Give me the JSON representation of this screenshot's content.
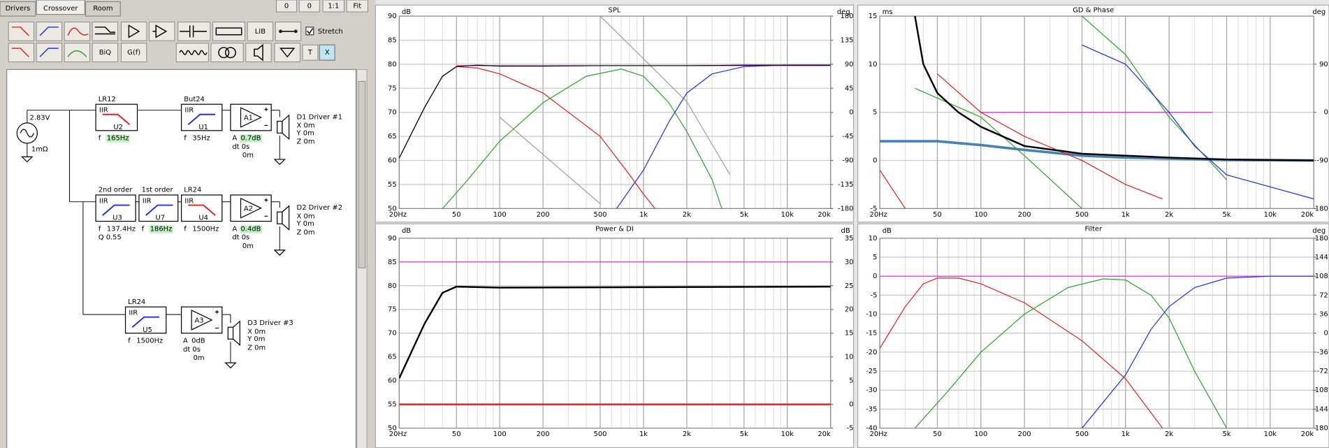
{
  "ui": {
    "tabs": [
      "Drivers",
      "Crossover",
      "Room"
    ],
    "top_buttons": [
      "0",
      "0",
      "1:1",
      "Fit"
    ],
    "toolbar": [
      "LIB",
      "BiQ",
      "G(f)",
      "T",
      "X"
    ],
    "stretch": "Stretch",
    "schematic": {
      "source": {
        "voltage": "2.83V",
        "impedance": "1mΩ"
      },
      "filters": [
        {
          "title": "LR12",
          "type": "IIR",
          "unit": "U2",
          "f_label": "f",
          "f": "165Hz",
          "highlight": true,
          "color": "#e02020",
          "shape": "lowpass"
        },
        {
          "title": "But24",
          "type": "IIR",
          "unit": "U1",
          "f_label": "f",
          "f": "35Hz",
          "highlight": false,
          "color": "#2030e0",
          "shape": "highpass"
        },
        {
          "title": "2nd order",
          "type": "IIR",
          "unit": "U3",
          "f_label": "f",
          "f": "137.4Hz",
          "q": "Q 0.55",
          "highlight": false,
          "color": "#2030e0",
          "shape": "highpass"
        },
        {
          "title": "1st order",
          "type": "IIR",
          "unit": "U7",
          "f_label": "f",
          "f": "186Hz",
          "highlight": true,
          "color": "#2030e0",
          "shape": "highpass"
        },
        {
          "title": "LR24",
          "type": "IIR",
          "unit": "U4",
          "f_label": "f",
          "f": "1500Hz",
          "highlight": false,
          "color": "#e02020",
          "shape": "lowpass"
        },
        {
          "title": "LR24",
          "type": "IIR",
          "unit": "U5",
          "f_label": "f",
          "f": "1500Hz",
          "highlight": false,
          "color": "#2030e0",
          "shape": "highpass"
        }
      ],
      "amps": [
        {
          "unit": "A1",
          "gain_label": "A",
          "gain": "0.7dB",
          "highlight": true,
          "delay": "dt 0s",
          "dist": "0m"
        },
        {
          "unit": "A2",
          "gain_label": "A",
          "gain": "0.4dB",
          "highlight": true,
          "delay": "dt 0s",
          "dist": "0m"
        },
        {
          "unit": "A3",
          "gain_label": "A",
          "gain": "0dB",
          "highlight": false,
          "delay": "dt 0s",
          "dist": "0m"
        }
      ],
      "drivers": [
        {
          "name": "D1 Driver #1",
          "x": "X 0m",
          "y": "Y 0m",
          "z": "Z 0m"
        },
        {
          "name": "D2 Driver #2",
          "x": "X 0m",
          "y": "Y 0m",
          "z": "Z 0m"
        },
        {
          "name": "D3 Driver #3",
          "x": "X 0m",
          "y": "Y 0m",
          "z": "Z 0m"
        }
      ]
    }
  },
  "chart_data": [
    {
      "type": "line",
      "title": "SPL",
      "y_unit": "dB",
      "y2_unit": "deg",
      "xscale": "log",
      "xlim": [
        20,
        20000
      ],
      "xticks": [
        {
          "value": 20,
          "label": "20Hz"
        },
        50,
        100,
        200,
        500,
        {
          "value": 1000,
          "label": "1k"
        },
        {
          "value": 2000,
          "label": "2k"
        },
        {
          "value": 5000,
          "label": "5k"
        },
        {
          "value": 10000,
          "label": "10k"
        },
        {
          "value": 20000,
          "label": "20k"
        }
      ],
      "ylim": [
        50,
        90
      ],
      "yticks": [
        50,
        55,
        60,
        65,
        70,
        75,
        80,
        85,
        90
      ],
      "y2lim": [
        -180,
        180
      ],
      "y2ticks": [
        -180,
        -135,
        -90,
        -45,
        0,
        45,
        90,
        135,
        180
      ],
      "series": [
        {
          "color": "#a0a0a0",
          "axis": "y2",
          "x": [
            100,
            500
          ],
          "values": [
            -9,
            -171
          ]
        },
        {
          "color": "#a0a0a0",
          "axis": "y2",
          "x": [
            500,
            1000,
            2000,
            4000
          ],
          "values": [
            180,
            100,
            20,
            -117
          ]
        },
        {
          "color": "#e02020",
          "x": [
            20,
            30,
            40,
            50,
            70,
            100,
            200,
            500,
            800,
            1000,
            1200
          ],
          "values": [
            60.5,
            71,
            77.5,
            79.5,
            79.2,
            78,
            74,
            65,
            57,
            53,
            50
          ]
        },
        {
          "color": "#30a030",
          "x": [
            40,
            60,
            100,
            200,
            400,
            700,
            1000,
            1500,
            2000,
            3000,
            3500
          ],
          "values": [
            50,
            56,
            64,
            72,
            77.5,
            79,
            77.5,
            72,
            66,
            56,
            50
          ]
        },
        {
          "color": "#2030e0",
          "x": [
            650,
            1000,
            1500,
            2000,
            3000,
            5000,
            10000,
            20000
          ],
          "values": [
            50,
            58,
            68,
            74,
            78,
            79.5,
            79.8,
            79.8
          ]
        },
        {
          "color": "#e020e0",
          "x": [
            50,
            20000
          ],
          "values": [
            79.7,
            79.7
          ]
        },
        {
          "color": "#000000",
          "x": [
            20,
            30,
            40,
            50,
            70,
            100,
            200,
            500,
            1000,
            2000,
            5000,
            20000
          ],
          "values": [
            60.5,
            71,
            77.5,
            79.5,
            79.8,
            79.6,
            79.6,
            79.7,
            79.7,
            79.7,
            79.8,
            79.8
          ]
        }
      ]
    },
    {
      "type": "line",
      "title": "GD & Phase",
      "y_unit": "ms",
      "y2_unit": "deg",
      "xscale": "log",
      "xlim": [
        20,
        20000
      ],
      "xticks": [
        {
          "value": 20,
          "label": "20Hz"
        },
        50,
        100,
        200,
        500,
        {
          "value": 1000,
          "label": "1k"
        },
        {
          "value": 2000,
          "label": "2k"
        },
        {
          "value": 5000,
          "label": "5k"
        },
        {
          "value": 10000,
          "label": "10k"
        },
        {
          "value": 20000,
          "label": "20k"
        }
      ],
      "ylim": [
        -5,
        15
      ],
      "yticks": [
        -5,
        0,
        5,
        10,
        15
      ],
      "y2lim": [
        -180,
        180
      ],
      "y2ticks": [
        -180,
        -90,
        0,
        90
      ],
      "series": [
        {
          "color": "#4682b4",
          "width": 3,
          "x": [
            20,
            50,
            100,
            200,
            500,
            1000,
            5000,
            20000
          ],
          "values": [
            2,
            2,
            1.6,
            1.1,
            0.5,
            0.3,
            0.05,
            0
          ]
        },
        {
          "color": "#e020e0",
          "x": [
            100,
            4000
          ],
          "values": [
            5,
            5
          ]
        },
        {
          "color": "#e02020",
          "x": [
            20,
            30,
            30,
            50,
            100,
            200,
            500,
            1000,
            1800
          ],
          "values": [
            -1,
            -5,
            null,
            9,
            5,
            2.5,
            0,
            -2.5,
            -4
          ]
        },
        {
          "color": "#30a030",
          "x": [
            35,
            100,
            200,
            500,
            500,
            500,
            1000,
            2000,
            5000
          ],
          "values": [
            7.5,
            4.5,
            0.5,
            -5,
            null,
            15,
            11,
            4.5,
            -2
          ]
        },
        {
          "color": "#2030e0",
          "x": [
            500,
            1000,
            2000,
            3000,
            5000,
            20000
          ],
          "values": [
            12,
            10,
            5,
            1.5,
            -1.5,
            -4
          ]
        },
        {
          "color": "#000000",
          "width": 2,
          "x": [
            35,
            40,
            50,
            70,
            100,
            200,
            500,
            1000,
            2000,
            5000,
            20000
          ],
          "values": [
            15,
            10,
            7,
            5,
            3.5,
            1.5,
            0.7,
            0.5,
            0.3,
            0.1,
            0
          ]
        }
      ]
    },
    {
      "type": "line",
      "title": "Power & DI",
      "y_unit": "dB",
      "y2_unit": "dB",
      "xscale": "log",
      "xlim": [
        20,
        20000
      ],
      "xticks": [
        {
          "value": 20,
          "label": "20Hz"
        },
        50,
        100,
        200,
        500,
        {
          "value": 1000,
          "label": "1k"
        },
        {
          "value": 2000,
          "label": "2k"
        },
        {
          "value": 5000,
          "label": "5k"
        },
        {
          "value": 10000,
          "label": "10k"
        },
        {
          "value": 20000,
          "label": "20k"
        }
      ],
      "ylim": [
        50,
        90
      ],
      "yticks": [
        50,
        55,
        60,
        65,
        70,
        75,
        80,
        85,
        90
      ],
      "y2lim": [
        -5,
        35
      ],
      "y2ticks": [
        -5,
        0,
        5,
        10,
        15,
        20,
        25,
        30,
        35
      ],
      "series": [
        {
          "color": "#e020e0",
          "x": [
            20,
            20000
          ],
          "values": [
            85,
            85
          ]
        },
        {
          "color": "#e02020",
          "width": 2,
          "axis": "y2",
          "x": [
            20,
            20000
          ],
          "values": [
            0,
            0
          ]
        },
        {
          "color": "#000000",
          "width": 2,
          "x": [
            20,
            30,
            40,
            50,
            100,
            20000
          ],
          "values": [
            60.5,
            72,
            78.5,
            79.8,
            79.6,
            79.8
          ]
        }
      ]
    },
    {
      "type": "line",
      "title": "Filter",
      "y_unit": "dB",
      "y2_unit": "deg",
      "xscale": "log",
      "xlim": [
        20,
        20000
      ],
      "xticks": [
        {
          "value": 20,
          "label": "20Hz"
        },
        50,
        100,
        200,
        500,
        {
          "value": 1000,
          "label": "1k"
        },
        {
          "value": 2000,
          "label": "2k"
        },
        {
          "value": 5000,
          "label": "5k"
        },
        {
          "value": 10000,
          "label": "10k"
        },
        {
          "value": 20000,
          "label": "20k"
        }
      ],
      "ylim": [
        -40,
        10
      ],
      "yticks": [
        -40,
        -35,
        -30,
        -25,
        -20,
        -15,
        -10,
        -5,
        0,
        5,
        10
      ],
      "y2lim": [
        -180,
        180
      ],
      "y2ticks": [
        -180,
        -144,
        -108,
        -72,
        -36,
        0,
        36,
        72,
        108,
        144,
        180
      ],
      "series": [
        {
          "color": "#e020e0",
          "x": [
            20,
            20000
          ],
          "values": [
            0,
            0
          ]
        },
        {
          "color": "#e02020",
          "x": [
            20,
            30,
            40,
            50,
            70,
            100,
            200,
            500,
            1000,
            1800
          ],
          "values": [
            -19,
            -8,
            -2,
            -0.5,
            -0.5,
            -2,
            -7,
            -17,
            -27,
            -40
          ]
        },
        {
          "color": "#30a030",
          "x": [
            35,
            60,
            100,
            200,
            400,
            700,
            1000,
            1500,
            2000,
            3000,
            5000
          ],
          "values": [
            -40,
            -30,
            -20,
            -10,
            -3,
            -0.7,
            -1,
            -5,
            -11,
            -25,
            -40
          ]
        },
        {
          "color": "#2030e0",
          "x": [
            500,
            1000,
            1500,
            2000,
            3000,
            5000,
            10000,
            20000
          ],
          "values": [
            -40,
            -26,
            -14,
            -8,
            -3,
            -0.5,
            0,
            0
          ]
        }
      ]
    }
  ]
}
